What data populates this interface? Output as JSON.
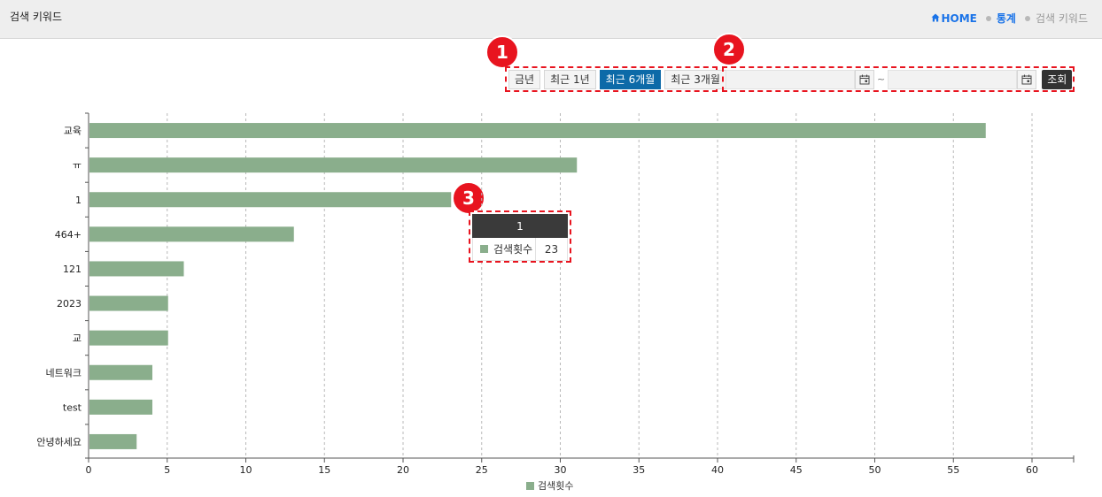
{
  "header": {
    "title": "검색 키워드",
    "breadcrumb": {
      "home": "HOME",
      "stats": "통계",
      "current": "검색 키워드"
    }
  },
  "filters": {
    "periods": [
      "금년",
      "최근 1년",
      "최근 6개월",
      "최근 3개월"
    ],
    "active_period": "최근 6개월",
    "date_from": "",
    "date_to": "",
    "tilde": "~",
    "search_label": "조회"
  },
  "annotations": {
    "badge1": "1",
    "badge2": "2",
    "badge3": "3"
  },
  "tooltip": {
    "title": "1",
    "series": "검색횟수",
    "value": "23"
  },
  "colors": {
    "bar": "#8aae8c",
    "accent": "#0d6aa8",
    "annotation": "#e8141f"
  },
  "chart_data": {
    "type": "bar",
    "orientation": "horizontal",
    "categories": [
      "교육",
      "ㅠ",
      "1",
      "464+",
      "121",
      "2023",
      "교",
      "네트워크",
      "test",
      "안녕하세요"
    ],
    "series": [
      {
        "name": "검색횟수",
        "values": [
          57,
          31,
          23,
          13,
          6,
          5,
          5,
          4,
          4,
          3
        ]
      }
    ],
    "xlim": [
      0,
      60
    ],
    "xticks": [
      0,
      5,
      10,
      15,
      20,
      25,
      30,
      35,
      40,
      45,
      50,
      55,
      60
    ],
    "grid": "vertical dashed",
    "legend": "bottom-center"
  }
}
